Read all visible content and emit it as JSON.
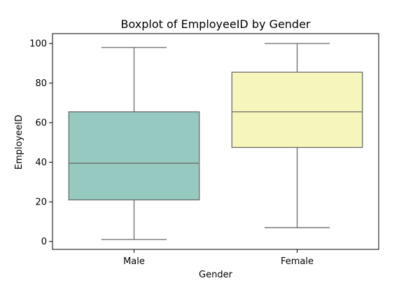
{
  "chart_data": {
    "type": "boxplot",
    "title": "Boxplot of EmployeeID by Gender",
    "xlabel": "Gender",
    "ylabel": "EmployeeID",
    "categories": [
      "Male",
      "Female"
    ],
    "boxes": [
      {
        "category": "Male",
        "whisker_low": 1,
        "q1": 21,
        "median": 39.5,
        "q3": 65.5,
        "whisker_high": 98,
        "color": "#96cac1"
      },
      {
        "category": "Female",
        "whisker_low": 7,
        "q1": 47.5,
        "median": 65.5,
        "q3": 85.5,
        "whisker_high": 100,
        "color": "#f6f6bc"
      }
    ],
    "ylim": [
      -4,
      105
    ],
    "yticks": [
      0,
      20,
      40,
      60,
      80,
      100
    ],
    "grid": false,
    "line_color": "#6b6b6b"
  }
}
